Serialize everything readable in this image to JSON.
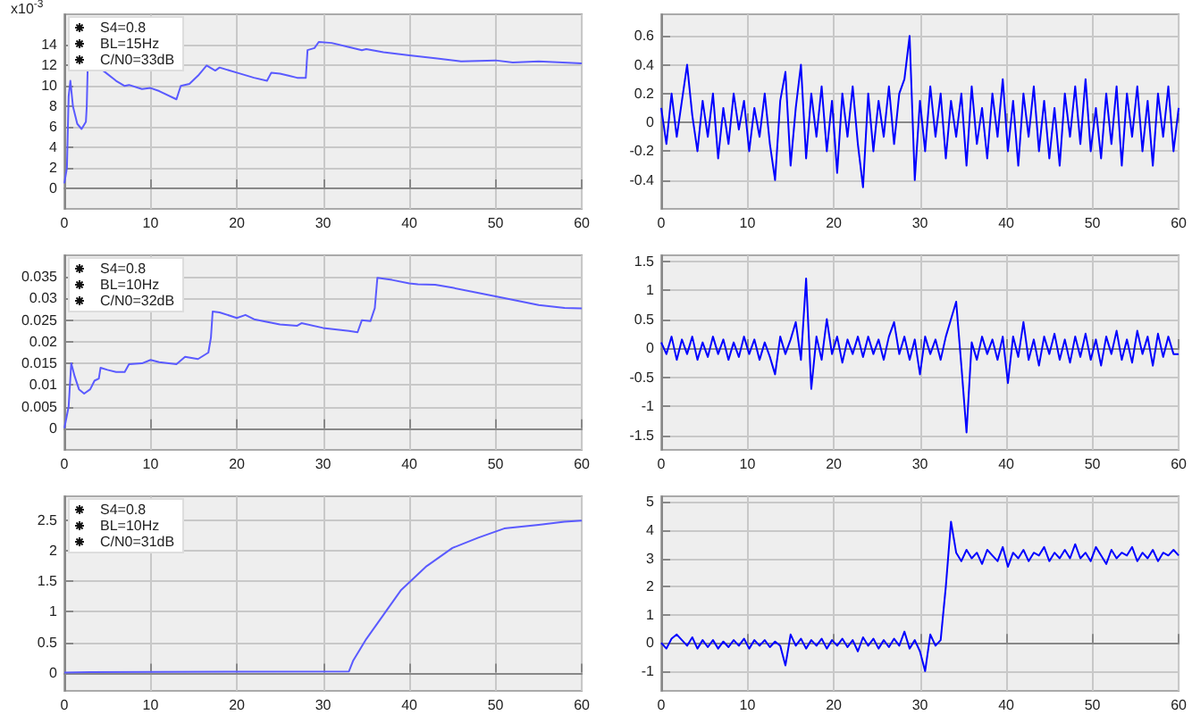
{
  "chart_data": [
    {
      "type": "line",
      "ylabel": "x10$^{-3}$",
      "annotations": [
        "S4=0.8",
        "BL=15Hz",
        "C/N0=33dB"
      ],
      "xlim": [
        0,
        60
      ],
      "xticks": [
        0,
        10,
        20,
        30,
        40,
        50,
        60
      ],
      "ylim": [
        -2,
        17
      ],
      "yticks": [
        0,
        2,
        4,
        6,
        8,
        10,
        12,
        14
      ],
      "grid": true,
      "series": [
        {
          "color": "#5a5aff",
          "x": [
            0,
            0.3,
            0.5,
            0.7,
            1,
            1.5,
            2,
            2.5,
            2.6,
            2.7,
            3.5,
            4.5,
            6,
            7,
            7.5,
            9,
            10,
            11,
            13,
            13.5,
            14.5,
            15.5,
            16.5,
            17.5,
            18,
            20,
            22,
            23.5,
            24,
            25,
            26,
            27,
            28,
            28.2,
            29,
            29.5,
            31,
            33,
            34.5,
            35,
            37,
            40,
            43,
            46,
            50,
            52,
            55,
            60
          ],
          "values": [
            0.5,
            2,
            9,
            10.5,
            8,
            6.3,
            5.8,
            6.5,
            8,
            11.5,
            null,
            11.5,
            10.5,
            10,
            10.1,
            9.7,
            9.8,
            9.5,
            8.7,
            10,
            10.2,
            11,
            12,
            11.5,
            11.8,
            11.3,
            10.8,
            10.5,
            11.3,
            11.2,
            11,
            10.8,
            10.8,
            13.5,
            13.7,
            14.3,
            14.2,
            13.8,
            13.5,
            13.6,
            13.3,
            13,
            12.7,
            12.4,
            12.5,
            12.3,
            12.4,
            12.2
          ]
        }
      ]
    },
    {
      "type": "line",
      "xlim": [
        0,
        60
      ],
      "xticks": [
        0,
        10,
        20,
        30,
        40,
        50,
        60
      ],
      "ylim": [
        -0.6,
        0.75
      ],
      "yticks": [
        -0.4,
        -0.2,
        0,
        0.2,
        0.4,
        0.6
      ],
      "grid": true,
      "series": [
        {
          "color": "#0000ff",
          "x": [
            0,
            0.6,
            1.2,
            1.8,
            2.4,
            3,
            3.6,
            4.2,
            4.8,
            5.4,
            6,
            6.6,
            7.2,
            7.8,
            8.4,
            9,
            9.6,
            10.2,
            10.8,
            11.4,
            12,
            12.6,
            13.2,
            13.8,
            14.4,
            15,
            15.6,
            16.2,
            16.8,
            17.4,
            18,
            18.6,
            19.2,
            19.8,
            20.4,
            21,
            21.6,
            22.2,
            22.8,
            23.4,
            24,
            24.6,
            25.2,
            25.8,
            26.4,
            27,
            27.6,
            28.2,
            28.8,
            29.4,
            30,
            30.6,
            31.2,
            31.8,
            32.4,
            33,
            33.6,
            34.2,
            34.8,
            35.4,
            36,
            36.6,
            37.2,
            37.8,
            38.4,
            39,
            39.6,
            40.2,
            40.8,
            41.4,
            42,
            42.6,
            43.2,
            43.8,
            44.4,
            45,
            45.6,
            46.2,
            46.8,
            47.4,
            48,
            48.6,
            49.2,
            49.8,
            50.4,
            51,
            51.6,
            52.2,
            52.8,
            53.4,
            54,
            54.6,
            55.2,
            55.8,
            56.4,
            57,
            57.6,
            58.2,
            58.8,
            59.4,
            60
          ],
          "values": [
            0.1,
            -0.15,
            0.2,
            -0.1,
            0.15,
            0.4,
            0.05,
            -0.2,
            0.15,
            -0.1,
            0.2,
            -0.25,
            0.1,
            -0.15,
            0.2,
            -0.05,
            0.15,
            -0.2,
            0.1,
            -0.1,
            0.2,
            -0.15,
            -0.4,
            0.15,
            0.35,
            -0.3,
            0.1,
            0.4,
            -0.25,
            0.2,
            -0.1,
            0.25,
            -0.2,
            0.15,
            -0.35,
            0.2,
            -0.1,
            0.25,
            -0.15,
            -0.45,
            0.2,
            -0.2,
            0.15,
            -0.1,
            0.25,
            -0.15,
            0.2,
            0.3,
            0.6,
            -0.4,
            0.15,
            -0.2,
            0.25,
            -0.1,
            0.2,
            -0.25,
            0.15,
            -0.1,
            0.2,
            -0.3,
            0.25,
            -0.15,
            0.1,
            -0.25,
            0.2,
            -0.1,
            0.3,
            -0.2,
            0.15,
            -0.3,
            0.2,
            -0.1,
            0.25,
            -0.2,
            0.15,
            -0.25,
            0.1,
            -0.3,
            0.2,
            -0.1,
            0.25,
            -0.15,
            0.3,
            -0.2,
            0.1,
            -0.25,
            0.2,
            -0.15,
            0.25,
            -0.3,
            0.2,
            -0.1,
            0.25,
            -0.2,
            0.15,
            -0.3,
            0.2,
            -0.1,
            0.25,
            -0.2,
            0.1
          ]
        }
      ]
    },
    {
      "type": "line",
      "annotations": [
        "S4=0.8",
        "BL=10Hz",
        "C/N0=32dB"
      ],
      "xlim": [
        0,
        60
      ],
      "xticks": [
        0,
        10,
        20,
        30,
        40,
        50,
        60
      ],
      "ylim": [
        -0.005,
        0.04
      ],
      "yticks": [
        0,
        0.005,
        0.01,
        0.015,
        0.02,
        0.025,
        0.03,
        0.035
      ],
      "grid": true,
      "series": [
        {
          "color": "#5a5aff",
          "x": [
            0,
            0.5,
            0.8,
            1.2,
            1.7,
            2.3,
            3,
            3.5,
            4,
            4.2,
            5,
            6,
            7,
            7.5,
            9,
            10,
            11,
            13,
            14,
            15.5,
            16.7,
            17,
            17.2,
            18,
            20,
            21,
            22,
            25,
            27,
            27.5,
            30,
            33,
            34,
            34.5,
            35.5,
            36,
            36.3,
            38,
            40,
            41,
            43,
            45,
            50,
            55,
            58,
            60
          ],
          "values": [
            0,
            0.005,
            0.015,
            0.012,
            0.009,
            0.008,
            0.009,
            0.011,
            0.0115,
            0.014,
            0.0135,
            0.013,
            0.013,
            0.0148,
            0.015,
            0.0158,
            0.0153,
            0.0148,
            0.0165,
            0.016,
            0.0175,
            0.021,
            0.027,
            0.0268,
            0.0255,
            0.0262,
            0.0252,
            0.024,
            0.0237,
            0.0243,
            0.0232,
            0.0225,
            0.0222,
            0.025,
            0.0248,
            0.0278,
            0.0348,
            0.0343,
            0.0335,
            0.0333,
            0.0332,
            0.0325,
            0.0305,
            0.0285,
            0.0278,
            0.0277
          ]
        }
      ]
    },
    {
      "type": "line",
      "xlim": [
        0,
        60
      ],
      "xticks": [
        0,
        10,
        20,
        30,
        40,
        50,
        60
      ],
      "ylim": [
        -1.75,
        1.6
      ],
      "yticks": [
        -1.5,
        -1,
        -0.5,
        0,
        0.5,
        1,
        1.5
      ],
      "grid": true,
      "series": [
        {
          "color": "#0000ff",
          "x": [
            0,
            0.6,
            1.2,
            1.8,
            2.4,
            3,
            3.6,
            4.2,
            4.8,
            5.4,
            6,
            6.6,
            7.2,
            7.8,
            8.4,
            9,
            9.6,
            10.2,
            10.8,
            11.4,
            12,
            12.6,
            13.2,
            13.8,
            14.4,
            15,
            15.6,
            16.2,
            16.8,
            17.4,
            18,
            18.6,
            19.2,
            19.8,
            20.4,
            21,
            21.6,
            22.2,
            22.8,
            23.4,
            24,
            24.6,
            25.2,
            25.8,
            26.4,
            27,
            27.6,
            28.2,
            28.8,
            29.4,
            30,
            30.6,
            31.2,
            31.8,
            32.4,
            33,
            33.6,
            34.2,
            34.8,
            35.4,
            36,
            36.6,
            37.2,
            37.8,
            38.4,
            39,
            39.6,
            40.2,
            40.8,
            41.4,
            42,
            42.6,
            43.2,
            43.8,
            44.4,
            45,
            45.6,
            46.2,
            46.8,
            47.4,
            48,
            48.6,
            49.2,
            49.8,
            50.4,
            51,
            51.6,
            52.2,
            52.8,
            53.4,
            54,
            54.6,
            55.2,
            55.8,
            56.4,
            57,
            57.6,
            58.2,
            58.8,
            59.4,
            60
          ],
          "values": [
            0.1,
            -0.1,
            0.2,
            -0.2,
            0.15,
            -0.1,
            0.2,
            -0.2,
            0.1,
            -0.15,
            0.2,
            -0.1,
            0.15,
            -0.2,
            0.1,
            -0.15,
            0.2,
            -0.1,
            0.15,
            -0.2,
            0.1,
            -0.15,
            -0.45,
            0.2,
            -0.1,
            0.15,
            0.45,
            -0.2,
            1.2,
            -0.7,
            0.2,
            -0.2,
            0.5,
            -0.1,
            0.2,
            -0.25,
            0.15,
            -0.1,
            0.2,
            -0.15,
            0.2,
            -0.1,
            0.15,
            -0.2,
            0.2,
            0.45,
            -0.1,
            0.2,
            -0.2,
            0.15,
            -0.45,
            0.2,
            -0.1,
            0.15,
            -0.2,
            0.2,
            0.5,
            0.8,
            -0.3,
            -1.45,
            0.1,
            -0.2,
            0.2,
            -0.1,
            0.15,
            -0.2,
            0.2,
            -0.6,
            0.2,
            -0.15,
            0.45,
            -0.2,
            0.15,
            -0.3,
            0.2,
            -0.1,
            0.25,
            -0.2,
            0.15,
            -0.25,
            0.2,
            -0.15,
            0.25,
            -0.2,
            0.15,
            -0.3,
            0.2,
            -0.1,
            0.3,
            -0.2,
            0.15,
            -0.25,
            0.3,
            -0.1,
            0.2,
            -0.3,
            0.25,
            -0.15,
            0.2,
            -0.1,
            -0.1
          ]
        }
      ]
    },
    {
      "type": "line",
      "annotations": [
        "S4=0.8",
        "BL=10Hz",
        "C/N0=31dB"
      ],
      "xlim": [
        0,
        60
      ],
      "xticks": [
        0,
        10,
        20,
        30,
        40,
        50,
        60
      ],
      "ylim": [
        -0.3,
        2.9
      ],
      "yticks": [
        0,
        0.5,
        1,
        1.5,
        2,
        2.5
      ],
      "grid": true,
      "series": [
        {
          "color": "#5a5aff",
          "x": [
            0,
            3,
            33,
            33.5,
            35,
            37,
            39,
            42,
            45,
            48,
            51,
            55,
            58,
            60
          ],
          "values": [
            0,
            0.01,
            0.02,
            0.2,
            0.55,
            0.95,
            1.35,
            1.75,
            2.05,
            2.22,
            2.37,
            2.43,
            2.48,
            2.5
          ]
        }
      ]
    },
    {
      "type": "line",
      "xlim": [
        0,
        60
      ],
      "xticks": [
        0,
        10,
        20,
        30,
        40,
        50,
        60
      ],
      "ylim": [
        -1.7,
        5.2
      ],
      "yticks": [
        -1,
        0,
        1,
        2,
        3,
        4,
        5
      ],
      "grid": true,
      "series": [
        {
          "color": "#0000ff",
          "x": [
            0,
            0.6,
            1.2,
            1.8,
            2.4,
            3,
            3.6,
            4.2,
            4.8,
            5.4,
            6,
            6.6,
            7.2,
            7.8,
            8.4,
            9,
            9.6,
            10.2,
            10.8,
            11.4,
            12,
            12.6,
            13.2,
            13.8,
            14.4,
            15,
            15.6,
            16.2,
            16.8,
            17.4,
            18,
            18.6,
            19.2,
            19.8,
            20.4,
            21,
            21.6,
            22.2,
            22.8,
            23.4,
            24,
            24.6,
            25.2,
            25.8,
            26.4,
            27,
            27.6,
            28.2,
            28.8,
            29.4,
            30,
            30.6,
            31.2,
            31.8,
            32.4,
            33,
            33.6,
            34.2,
            34.8,
            35.4,
            36,
            36.6,
            37.2,
            37.8,
            38.4,
            39,
            39.6,
            40.2,
            40.8,
            41.4,
            42,
            42.6,
            43.2,
            43.8,
            44.4,
            45,
            45.6,
            46.2,
            46.8,
            47.4,
            48,
            48.6,
            49.2,
            49.8,
            50.4,
            51,
            51.6,
            52.2,
            52.8,
            53.4,
            54,
            54.6,
            55.2,
            55.8,
            56.4,
            57,
            57.6,
            58.2,
            58.8,
            59.4,
            60
          ],
          "values": [
            0,
            -0.2,
            0.15,
            0.3,
            0.1,
            -0.1,
            0.2,
            -0.2,
            0.1,
            -0.15,
            0.1,
            -0.2,
            0.05,
            -0.15,
            0.1,
            -0.1,
            0.15,
            -0.2,
            0.1,
            -0.1,
            0.1,
            -0.15,
            0.05,
            -0.1,
            -0.8,
            0.3,
            -0.1,
            0.15,
            -0.2,
            0.1,
            -0.1,
            0.15,
            -0.2,
            0.1,
            -0.1,
            0.15,
            -0.15,
            0.1,
            -0.3,
            0.2,
            -0.1,
            0.15,
            -0.2,
            0.1,
            -0.15,
            0.15,
            -0.1,
            0.4,
            -0.2,
            0.1,
            -0.3,
            -1.0,
            0.3,
            -0.1,
            0.1,
            2.0,
            4.3,
            3.2,
            2.9,
            3.3,
            3.0,
            3.2,
            2.8,
            3.3,
            3.1,
            2.9,
            3.4,
            2.7,
            3.2,
            3.0,
            3.3,
            2.9,
            3.2,
            3.1,
            3.4,
            2.9,
            3.2,
            3.0,
            3.3,
            3.0,
            3.5,
            3.0,
            3.2,
            2.9,
            3.4,
            3.1,
            2.8,
            3.3,
            3.0,
            3.2,
            3.1,
            3.4,
            2.9,
            3.2,
            3.0,
            3.3,
            2.9,
            3.2,
            3.1,
            3.3,
            3.1
          ]
        }
      ]
    }
  ]
}
